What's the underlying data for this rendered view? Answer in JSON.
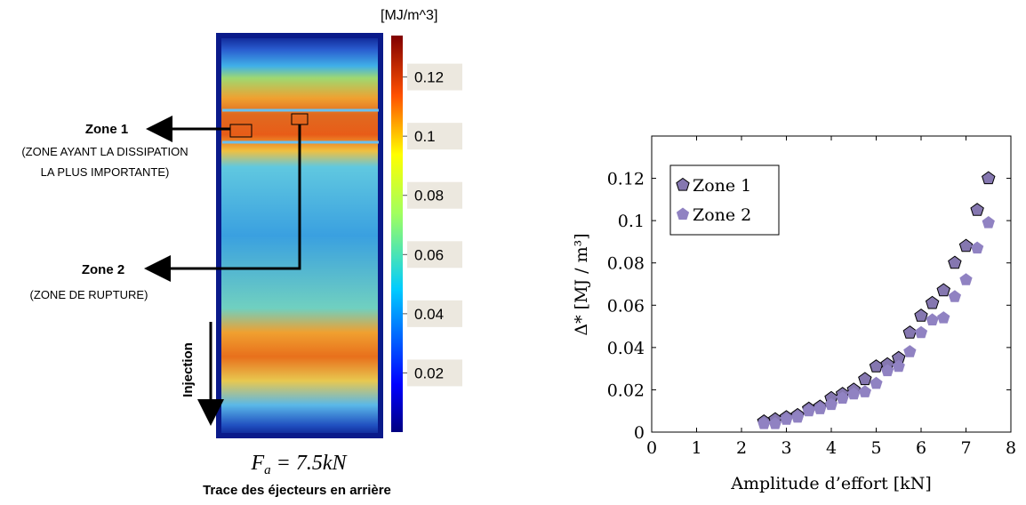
{
  "thermal_map": {
    "unit": "[MJ/m^3]",
    "colorbar": {
      "lim": [
        0,
        0.134
      ],
      "ticks": [
        0.02,
        0.04,
        0.06,
        0.08,
        0.1,
        0.12
      ]
    },
    "zone1": {
      "label": "Zone 1",
      "note_line1": "(ZONE AYANT  LA DISSIPATION",
      "note_line2": "LA PLUS IMPORTANTE)"
    },
    "zone2": {
      "label": "Zone 2",
      "note_line1": "(ZONE DE RUPTURE)"
    },
    "arrow_label": "Injection",
    "force": {
      "symbol": "F",
      "subscript": "a",
      "rest": " = 7.5kN"
    },
    "caption": "Trace des éjecteurs en arrière"
  },
  "chart_data": {
    "type": "scatter",
    "xlabel": "Amplitude d’effort [kN]",
    "ylabel": "Δ* [MJ / m³]",
    "xlim": [
      0,
      8
    ],
    "xticks": [
      0,
      1,
      2,
      3,
      4,
      5,
      6,
      7,
      8
    ],
    "ylim": [
      0,
      0.14
    ],
    "yticks": [
      0,
      0.02,
      0.04,
      0.06,
      0.08,
      0.1,
      0.12
    ],
    "legend": "upper left",
    "series": [
      {
        "name": "Zone 1",
        "color": "#8577b0",
        "edgecolor": "#000000",
        "x": [
          2.5,
          2.75,
          3,
          3.25,
          3.5,
          3.75,
          4,
          4.25,
          4.5,
          4.75,
          5,
          5.25,
          5.5,
          5.75,
          6,
          6.25,
          6.5,
          6.75,
          7,
          7.25,
          7.5
        ],
        "values": [
          0.005,
          0.006,
          0.007,
          0.008,
          0.011,
          0.012,
          0.016,
          0.018,
          0.02,
          0.025,
          0.031,
          0.032,
          0.035,
          0.047,
          0.055,
          0.061,
          0.067,
          0.08,
          0.088,
          0.105,
          0.12
        ]
      },
      {
        "name": "Zone 2",
        "color": "#9082c2",
        "x": [
          2.5,
          2.75,
          3,
          3.25,
          3.5,
          3.75,
          4,
          4.25,
          4.5,
          4.75,
          5,
          5.25,
          5.5,
          5.75,
          6,
          6.25,
          6.5,
          6.75,
          7,
          7.25,
          7.5
        ],
        "values": [
          0.004,
          0.004,
          0.006,
          0.007,
          0.01,
          0.011,
          0.013,
          0.016,
          0.018,
          0.019,
          0.023,
          0.029,
          0.031,
          0.038,
          0.047,
          0.053,
          0.054,
          0.064,
          0.072,
          0.087,
          0.099
        ]
      }
    ]
  }
}
